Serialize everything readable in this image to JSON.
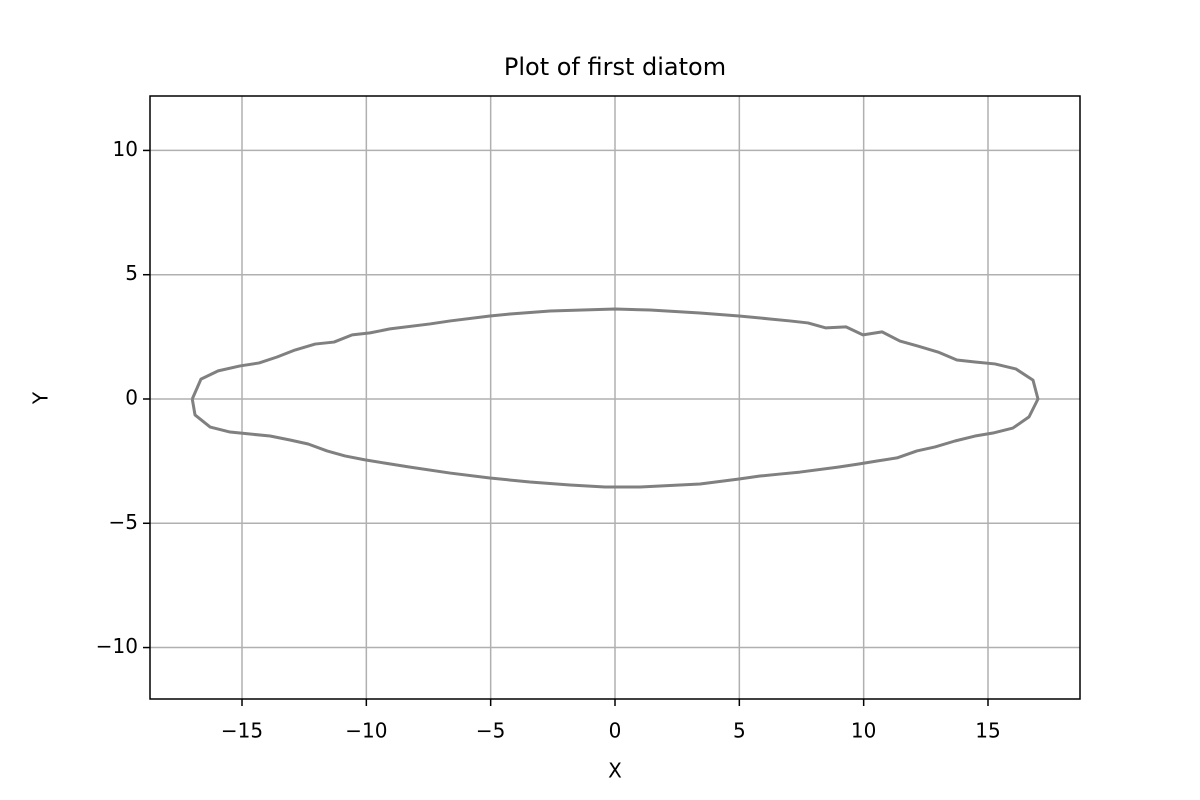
{
  "chart_data": {
    "type": "line",
    "title": "Plot of first diatom",
    "x_label": "X",
    "y_label": "Y",
    "series": [
      {
        "color": "#808080",
        "x": [
          -17.0,
          -16.65,
          -15.96,
          -15.08,
          -14.31,
          -13.59,
          -12.87,
          -12.06,
          -11.3,
          -10.57,
          -9.85,
          -9.05,
          -7.44,
          -6.63,
          -5.03,
          -4.22,
          -2.61,
          0,
          1.41,
          3.42,
          4.99,
          6.23,
          7.04,
          7.76,
          8.48,
          9.29,
          9.97,
          10.74,
          11.46,
          12.18,
          12.99,
          13.75,
          14.48,
          15.28,
          16.12,
          16.81,
          17.01,
          16.65,
          16.0,
          15.2,
          14.48,
          13.67,
          12.87,
          12.14,
          11.34,
          10.57,
          9.77,
          8.97,
          7.44,
          6.63,
          5.83,
          4.99,
          3.42,
          1.81,
          1.01,
          -0.4,
          -1.81,
          -3.42,
          -5.03,
          -6.63,
          -8.24,
          -9.25,
          -10.05,
          -10.86,
          -11.58,
          -12.34,
          -13.07,
          -13.87,
          -14.68,
          -15.48,
          -16.28,
          -16.89,
          -17.0
        ],
        "values": [
          0,
          0.8,
          1.13,
          1.33,
          1.45,
          1.69,
          1.97,
          2.21,
          2.29,
          2.58,
          2.66,
          2.82,
          3.02,
          3.14,
          3.34,
          3.42,
          3.54,
          3.62,
          3.58,
          3.46,
          3.34,
          3.22,
          3.14,
          3.06,
          2.86,
          2.9,
          2.58,
          2.7,
          2.33,
          2.13,
          1.89,
          1.57,
          1.49,
          1.41,
          1.21,
          0.76,
          0,
          -0.72,
          -1.17,
          -1.37,
          -1.49,
          -1.69,
          -1.93,
          -2.09,
          -2.37,
          -2.49,
          -2.62,
          -2.74,
          -2.94,
          -3.02,
          -3.1,
          -3.22,
          -3.42,
          -3.5,
          -3.54,
          -3.54,
          -3.46,
          -3.34,
          -3.18,
          -2.98,
          -2.74,
          -2.58,
          -2.45,
          -2.29,
          -2.09,
          -1.81,
          -1.65,
          -1.49,
          -1.41,
          -1.33,
          -1.13,
          -0.64,
          0
        ]
      }
    ],
    "xlim": [
      -18.7,
      18.7
    ],
    "ylim": [
      -12.07,
      12.19
    ],
    "xticks": [
      {
        "value": -15,
        "label": "−15"
      },
      {
        "value": -10,
        "label": "−10"
      },
      {
        "value": -5,
        "label": "−5"
      },
      0,
      5,
      10,
      15
    ],
    "yticks": [
      {
        "value": -10,
        "label": "−10"
      },
      {
        "value": -5,
        "label": "−5"
      },
      0,
      5,
      10
    ],
    "grid": true
  }
}
